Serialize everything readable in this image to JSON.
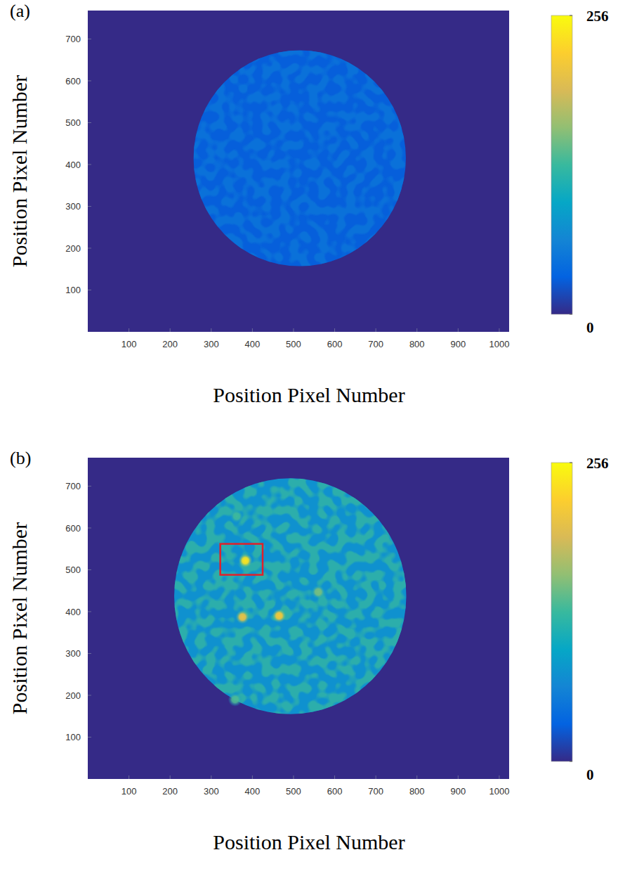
{
  "chart_data": [
    {
      "type": "heatmap",
      "title": "(a)",
      "x_label": "Position Pixel Number",
      "y_label": "Position Pixel Number",
      "xlim": [
        0,
        1024
      ],
      "ylim": [
        0,
        768
      ],
      "xticks": [
        100,
        200,
        300,
        400,
        500,
        600,
        700,
        800,
        900,
        1000
      ],
      "yticks": [
        100,
        200,
        300,
        400,
        500,
        600,
        700
      ],
      "background": 0,
      "disk": {
        "x": 515,
        "y": 415,
        "radius": 258,
        "value": 30
      },
      "spots": [],
      "colorbar": {
        "range": [
          0,
          256
        ],
        "ticks": [
          0,
          256
        ]
      }
    },
    {
      "type": "heatmap",
      "title": "(b)",
      "x_label": "Position Pixel Number",
      "y_label": "Position Pixel Number",
      "xlim": [
        0,
        1024
      ],
      "ylim": [
        0,
        768
      ],
      "xticks": [
        100,
        200,
        300,
        400,
        500,
        600,
        700,
        800,
        900,
        1000
      ],
      "yticks": [
        100,
        200,
        300,
        400,
        500,
        600,
        700
      ],
      "background": 0,
      "disk": {
        "x": 492,
        "y": 437,
        "radius": 282,
        "value": 75
      },
      "spots": [
        {
          "x": 383,
          "y": 522,
          "value": 240
        },
        {
          "x": 376,
          "y": 387,
          "value": 205
        },
        {
          "x": 465,
          "y": 390,
          "value": 215
        },
        {
          "x": 560,
          "y": 447,
          "value": 150
        },
        {
          "x": 362,
          "y": 628,
          "value": 130
        },
        {
          "x": 358,
          "y": 190,
          "value": 135
        }
      ],
      "box": {
        "x": [
          322,
          425
        ],
        "y": [
          488,
          562
        ]
      },
      "colorbar": {
        "range": [
          0,
          256
        ],
        "ticks": [
          0,
          256
        ]
      }
    }
  ]
}
